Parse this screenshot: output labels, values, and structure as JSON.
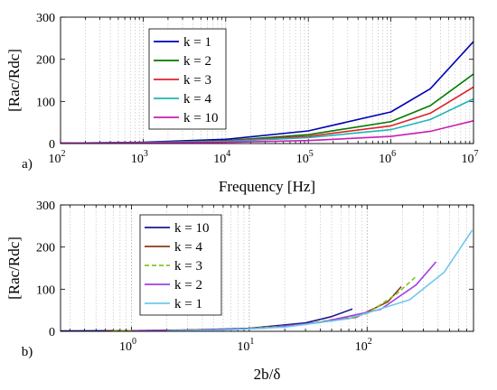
{
  "chart_data": [
    {
      "type": "line",
      "panel_label": "a)",
      "xlabel": "Frequency [Hz]",
      "ylabel": "[Rac/Rdc]",
      "xscale": "log",
      "xlim": [
        100,
        10000000
      ],
      "ylim": [
        0,
        300
      ],
      "yticks": [
        0,
        100,
        200,
        300
      ],
      "xtick_exponents": [
        "2",
        "3",
        "4",
        "5",
        "6",
        "7"
      ],
      "xtick_base": "10",
      "grid": "x",
      "legend": "top-left",
      "series": [
        {
          "name": "k = 1",
          "color": "#0000b4",
          "dash": "solid",
          "x": [
            100,
            1000,
            10000,
            100000,
            1000000,
            3000000,
            10000000
          ],
          "y": [
            1,
            3,
            10,
            30,
            75,
            130,
            242
          ]
        },
        {
          "name": "k = 2",
          "color": "#007a00",
          "dash": "solid",
          "x": [
            100,
            1000,
            10000,
            100000,
            1000000,
            3000000,
            10000000
          ],
          "y": [
            1,
            2,
            7,
            21,
            52,
            90,
            165
          ]
        },
        {
          "name": "k = 3",
          "color": "#e0202a",
          "dash": "solid",
          "x": [
            100,
            1000,
            10000,
            100000,
            1000000,
            3000000,
            10000000
          ],
          "y": [
            1,
            2,
            6,
            17,
            42,
            72,
            134
          ]
        },
        {
          "name": "k = 4",
          "color": "#1fb5b5",
          "dash": "solid",
          "x": [
            100,
            1000,
            10000,
            100000,
            1000000,
            3000000,
            10000000
          ],
          "y": [
            1,
            2,
            5,
            14,
            33,
            57,
            106
          ]
        },
        {
          "name": "k = 10",
          "color": "#c71fb4",
          "dash": "solid",
          "x": [
            100,
            1000,
            10000,
            100000,
            1000000,
            3000000,
            10000000
          ],
          "y": [
            1,
            1.5,
            3,
            7,
            17,
            29,
            54
          ]
        }
      ]
    },
    {
      "type": "line",
      "panel_label": "b)",
      "xlabel": "2b/δ",
      "ylabel": "[Rac/Rdc]",
      "xscale": "log",
      "xlim": [
        0.25,
        800
      ],
      "ylim": [
        0,
        300
      ],
      "yticks": [
        0,
        100,
        200,
        300
      ],
      "xtick_exponents": [
        "0",
        "1",
        "2"
      ],
      "xtick_base": "10",
      "grid": "x",
      "legend": "top-left",
      "series": [
        {
          "name": "k = 10",
          "color": "#1a1a8c",
          "dash": "solid",
          "x": [
            0.25,
            1,
            3,
            10,
            30,
            50,
            75
          ],
          "y": [
            1,
            1.5,
            3,
            7,
            20,
            35,
            53
          ]
        },
        {
          "name": "k = 4",
          "color": "#8b3a1a",
          "dash": "solid",
          "x": [
            0.6,
            2,
            8,
            25,
            80,
            150,
            195
          ],
          "y": [
            1,
            2,
            5,
            14,
            33,
            70,
            106
          ]
        },
        {
          "name": "k = 3",
          "color": "#7ec825",
          "dash": "dashed",
          "x": [
            0.7,
            2.5,
            10,
            30,
            100,
            180,
            260
          ],
          "y": [
            1,
            2,
            6,
            17,
            42,
            90,
            130
          ]
        },
        {
          "name": "k = 2",
          "color": "#a040e6",
          "dash": "solid",
          "x": [
            1,
            3,
            13,
            40,
            130,
            260,
            385
          ],
          "y": [
            1,
            2,
            7,
            21,
            52,
            110,
            165
          ]
        },
        {
          "name": "k = 1",
          "color": "#6ec8ee",
          "dash": "solid",
          "x": [
            2,
            6,
            20,
            70,
            230,
            450,
            780
          ],
          "y": [
            1,
            3,
            10,
            30,
            75,
            140,
            240
          ]
        }
      ]
    }
  ]
}
